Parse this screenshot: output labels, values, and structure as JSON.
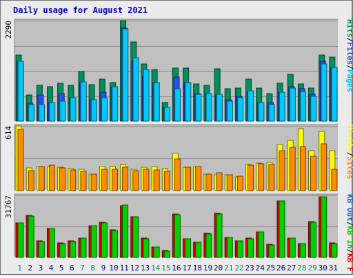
{
  "title": "Daily usage for August 2021",
  "colors": {
    "title": "#0000bf",
    "background": "#ebebeb",
    "panel": "#c0c0c0",
    "gridline": "#8f8f8f",
    "hits": "#008f5f",
    "files": "#2b50e8",
    "pages": "#00c8f8",
    "visits": "#ffff00",
    "sites": "#ff8c00",
    "kb_in": "#00d000",
    "kb_out": "#006ad0",
    "kb_f": "#e00000",
    "weekend_label": "#008f5f",
    "weekday_label": "#000080",
    "separator": "#000000"
  },
  "chart_data": [
    {
      "type": "bar",
      "name": "hits-files-pages",
      "x": [
        1,
        2,
        3,
        4,
        5,
        6,
        7,
        8,
        9,
        10,
        11,
        12,
        13,
        14,
        15,
        16,
        17,
        18,
        19,
        20,
        21,
        22,
        23,
        24,
        25,
        26,
        27,
        28,
        29,
        30,
        31
      ],
      "ymax_label": "2290",
      "ylim": [
        0,
        2290
      ],
      "grid": true,
      "series": [
        {
          "name": "Hits",
          "color": "#008f5f",
          "values": [
            1510,
            600,
            820,
            780,
            860,
            820,
            1130,
            830,
            950,
            880,
            2290,
            1810,
            1300,
            1170,
            420,
            1200,
            1200,
            850,
            820,
            1190,
            740,
            760,
            950,
            760,
            630,
            860,
            1060,
            850,
            760,
            1500,
            1460
          ]
        },
        {
          "name": "Files",
          "color": "#2b50e8",
          "values": [
            1330,
            410,
            590,
            420,
            630,
            530,
            890,
            490,
            660,
            780,
            2120,
            1360,
            1020,
            880,
            320,
            1000,
            880,
            620,
            630,
            610,
            490,
            560,
            680,
            430,
            430,
            660,
            780,
            740,
            610,
            1360,
            1200
          ]
        },
        {
          "name": "Pages",
          "color": "#00c8f8",
          "values": [
            1370,
            380,
            370,
            420,
            460,
            530,
            900,
            490,
            540,
            790,
            2100,
            1440,
            1170,
            880,
            320,
            730,
            880,
            610,
            620,
            610,
            450,
            540,
            690,
            430,
            380,
            660,
            750,
            680,
            560,
            1300,
            1230
          ]
        }
      ],
      "side_labels": [
        "Pages",
        "Files",
        "Hits"
      ]
    },
    {
      "type": "bar",
      "name": "visits-sites",
      "x": [
        1,
        2,
        3,
        4,
        5,
        6,
        7,
        8,
        9,
        10,
        11,
        12,
        13,
        14,
        15,
        16,
        17,
        18,
        19,
        20,
        21,
        22,
        23,
        24,
        25,
        26,
        27,
        28,
        29,
        30,
        31
      ],
      "ymax_label": "614",
      "ylim": [
        0,
        614
      ],
      "grid": true,
      "series": [
        {
          "name": "Visits",
          "color": "#ffff00",
          "values": [
            614,
            215,
            230,
            230,
            225,
            210,
            200,
            160,
            230,
            230,
            245,
            205,
            220,
            230,
            210,
            355,
            220,
            230,
            160,
            150,
            150,
            130,
            250,
            260,
            270,
            440,
            480,
            590,
            380,
            560,
            380
          ]
        },
        {
          "name": "Sites",
          "color": "#ff8c00",
          "values": [
            580,
            190,
            230,
            240,
            215,
            195,
            180,
            160,
            200,
            200,
            220,
            190,
            200,
            195,
            185,
            300,
            220,
            230,
            160,
            170,
            150,
            140,
            240,
            255,
            250,
            380,
            410,
            420,
            325,
            445,
            205
          ]
        }
      ],
      "side_labels": [
        "Sites",
        "Visits"
      ]
    },
    {
      "type": "bar",
      "name": "kb-f-in",
      "x": [
        1,
        2,
        3,
        4,
        5,
        6,
        7,
        8,
        9,
        10,
        11,
        12,
        13,
        14,
        15,
        16,
        17,
        18,
        19,
        20,
        21,
        22,
        23,
        24,
        25,
        26,
        27,
        28,
        29,
        30,
        31
      ],
      "ymax_label": "31767",
      "ylim": [
        0,
        31767
      ],
      "grid": true,
      "series": [
        {
          "name": "KB F",
          "color": "#e00000",
          "values": [
            17800,
            21600,
            8300,
            15000,
            7300,
            8300,
            10000,
            16400,
            18000,
            14100,
            26600,
            21000,
            9800,
            5300,
            3500,
            22400,
            9600,
            7900,
            12300,
            22600,
            10300,
            8500,
            9800,
            13100,
            6600,
            29100,
            10000,
            7000,
            18200,
            31100,
            7400
          ]
        },
        {
          "name": "KB In",
          "color": "#00d000",
          "values": [
            17600,
            21200,
            8100,
            14800,
            7200,
            8200,
            9800,
            16200,
            17600,
            13900,
            26800,
            20800,
            9600,
            5200,
            3300,
            22000,
            9400,
            7800,
            12100,
            22200,
            10100,
            8300,
            9600,
            12900,
            6400,
            28900,
            9800,
            6900,
            18000,
            30900,
            7200
          ]
        }
      ],
      "side_labels": [
        "KB F",
        "KB In",
        "KB Out"
      ]
    }
  ],
  "x_labels": [
    "1",
    "2",
    "3",
    "4",
    "5",
    "6",
    "7",
    "8",
    "9",
    "10",
    "11",
    "12",
    "13",
    "14",
    "15",
    "16",
    "17",
    "18",
    "19",
    "20",
    "21",
    "22",
    "23",
    "24",
    "25",
    "26",
    "27",
    "28",
    "29",
    "30",
    "31"
  ],
  "weekend_days": [
    1,
    7,
    8,
    14,
    15,
    21,
    22,
    28,
    29
  ]
}
